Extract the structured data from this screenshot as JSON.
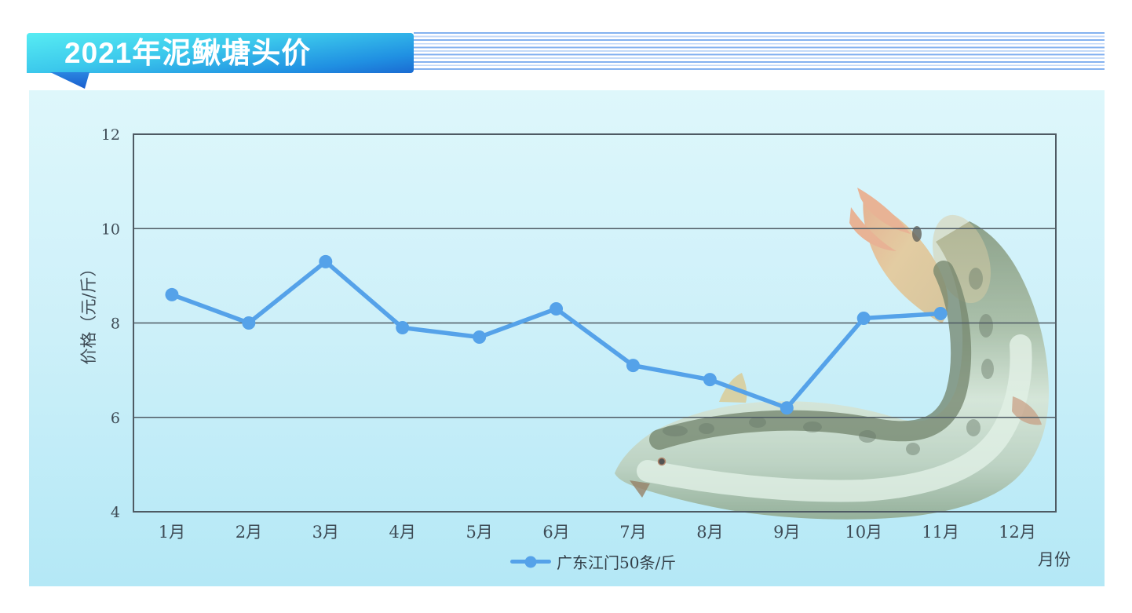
{
  "header": {
    "title": "2021年泥鳅塘头价"
  },
  "chart_data": {
    "type": "line",
    "categories": [
      "1月",
      "2月",
      "3月",
      "4月",
      "5月",
      "6月",
      "7月",
      "8月",
      "9月",
      "10月",
      "11月",
      "12月"
    ],
    "series": [
      {
        "name": "广东江门50条/斤",
        "values": [
          8.6,
          8.0,
          9.3,
          7.9,
          7.7,
          8.3,
          7.1,
          6.8,
          6.2,
          8.1,
          8.2,
          null
        ]
      }
    ],
    "xlabel": "月份",
    "ylabel": "价格（元/斤）",
    "ylim": [
      4,
      12
    ],
    "yticks": [
      4,
      6,
      8,
      10,
      12
    ],
    "grid": true,
    "legend_position": "bottom-center",
    "line_color": "#55a2e9"
  },
  "colors": {
    "accent_line": "#55a2e9",
    "grid_line": "#4e5a63",
    "tick_label": "#3e4b55",
    "banner_top": "#57ecf3",
    "banner_bottom": "#1a6bd2",
    "panel_top": "#def7fb",
    "panel_bottom": "#b4e8f6",
    "ruled_line_dark": "#84b2f0",
    "ruled_line_light": "#c4daf8"
  },
  "decorations": {
    "fish_image": "loach"
  }
}
